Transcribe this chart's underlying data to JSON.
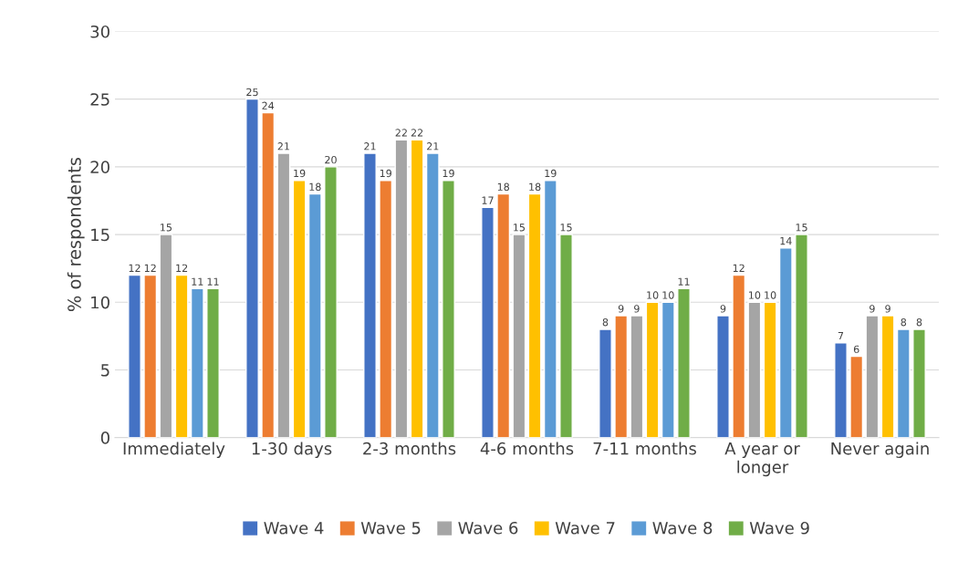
{
  "chart_data": {
    "type": "bar",
    "ylabel": "% of respondents",
    "categories": [
      "Immediately",
      "1-30 days",
      "2-3 months",
      "4-6 months",
      "7-11 months",
      "A year or\nlonger",
      "Never again"
    ],
    "series": [
      {
        "name": "Wave 4",
        "color": "#4472c4",
        "values": [
          12,
          25,
          21,
          17,
          8,
          9,
          7
        ]
      },
      {
        "name": "Wave 5",
        "color": "#ed7d31",
        "values": [
          12,
          24,
          19,
          18,
          9,
          12,
          6
        ]
      },
      {
        "name": "Wave 6",
        "color": "#a5a5a5",
        "values": [
          15,
          21,
          22,
          15,
          9,
          10,
          9
        ]
      },
      {
        "name": "Wave 7",
        "color": "#ffc000",
        "values": [
          12,
          19,
          22,
          18,
          10,
          10,
          9
        ]
      },
      {
        "name": "Wave 8",
        "color": "#5b9bd5",
        "values": [
          11,
          18,
          21,
          19,
          10,
          14,
          8
        ]
      },
      {
        "name": "Wave 9",
        "color": "#70ad47",
        "values": [
          11,
          20,
          19,
          15,
          11,
          15,
          8
        ]
      }
    ],
    "ylim": [
      0,
      30
    ],
    "yticks": [
      0,
      5,
      10,
      15,
      20,
      25,
      30
    ],
    "grid": "y",
    "legend": "bottom",
    "data_labels": true
  }
}
